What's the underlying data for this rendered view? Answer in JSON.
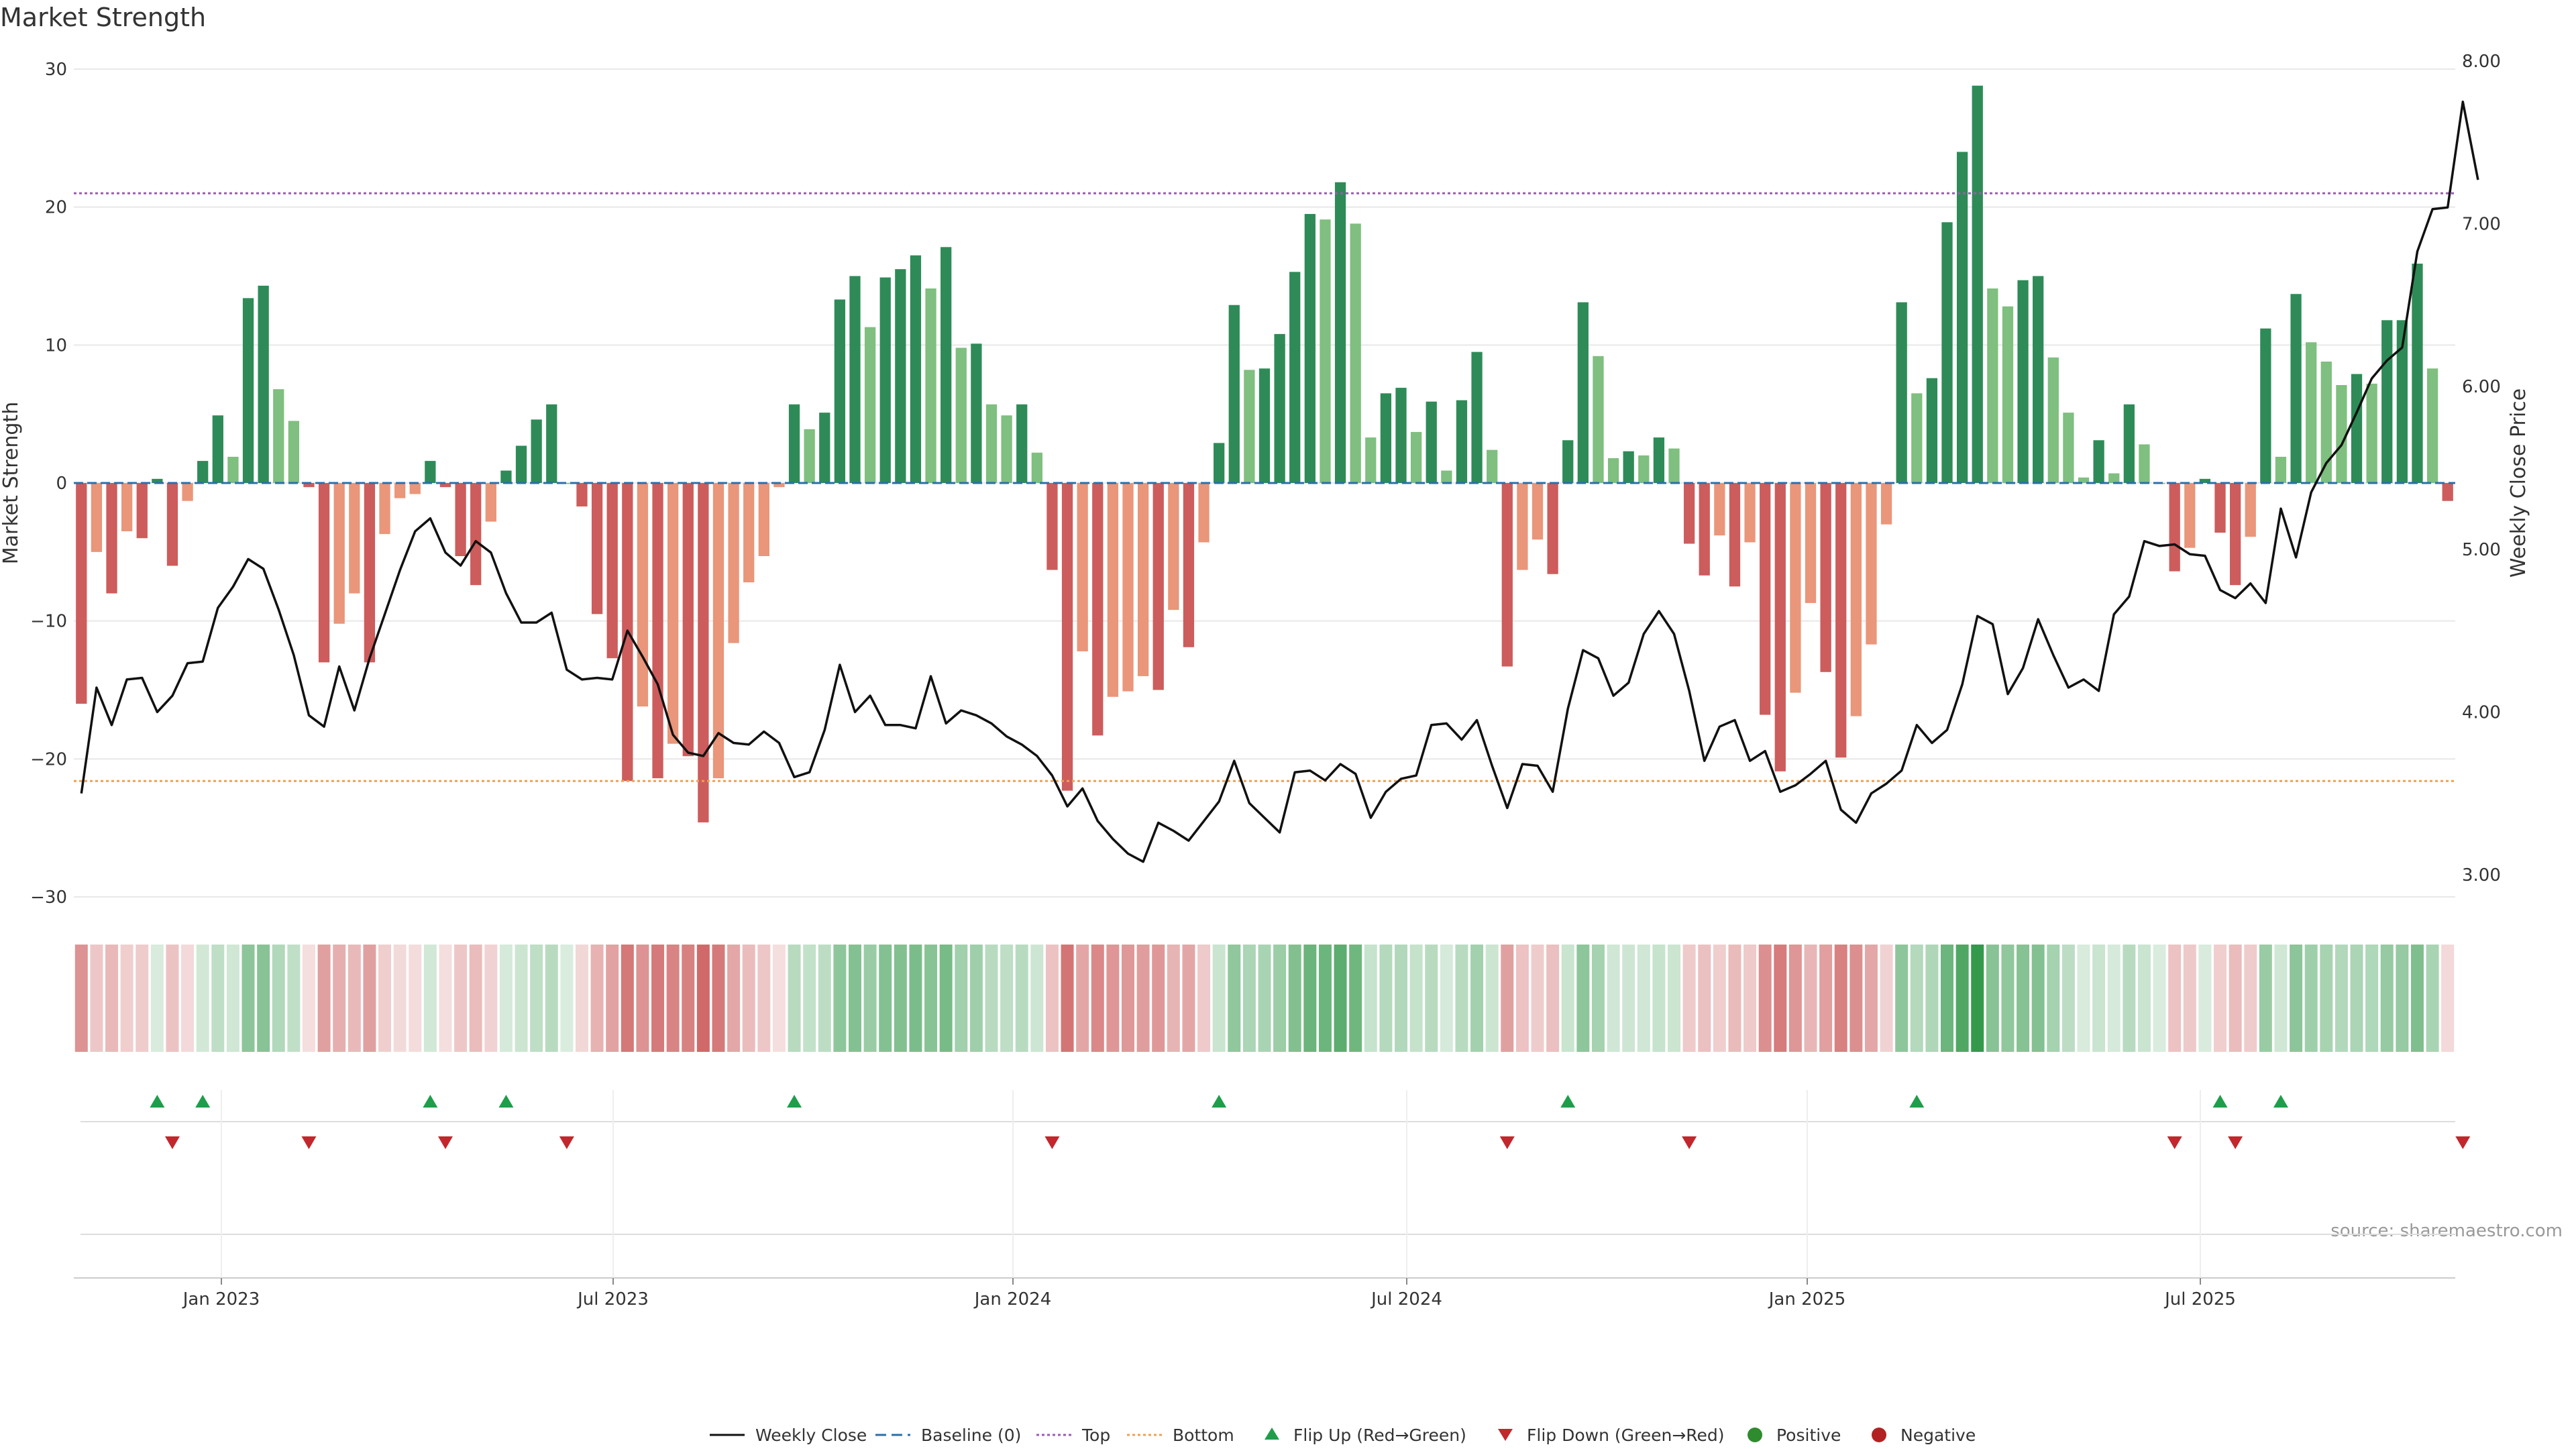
{
  "chart_data": {
    "type": "bar",
    "title": "Market Strength",
    "source": "source: sharemaestro.com",
    "left_axis": {
      "label": "Market Strength",
      "ticks": [
        "30",
        "20",
        "10",
        "0",
        "−10",
        "−20",
        "−30"
      ],
      "range": [
        -30,
        30
      ]
    },
    "right_axis": {
      "label": "Weekly Close Price",
      "ticks": [
        "8.00",
        "7.00",
        "6.00",
        "5.00",
        "4.00",
        "3.00"
      ],
      "range": [
        2.85,
        8.05
      ]
    },
    "x_axis": {
      "ticks": [
        "Jan 2023",
        "Jul 2023",
        "Jan 2024",
        "Jul 2024",
        "Jan 2025",
        "Jul 2025"
      ]
    },
    "top_line": 21,
    "bottom_line": -21.6,
    "strength": [
      -16,
      -5,
      -8,
      -3.5,
      -4,
      0.3,
      -6,
      -1.3,
      1.6,
      4.9,
      1.9,
      13.4,
      14.3,
      6.8,
      4.5,
      -0.3,
      -13,
      -10.2,
      -8,
      -13,
      -3.7,
      -1.1,
      -0.8,
      1.6,
      -0.3,
      -5.3,
      -7.4,
      -2.8,
      0.9,
      2.7,
      4.6,
      5.7,
      0,
      -1.7,
      -9.5,
      -12.7,
      -21.6,
      -16.2,
      -21.4,
      -18.9,
      -19.8,
      -24.6,
      -21.4,
      -11.6,
      -7.2,
      -5.3,
      -0.3,
      5.7,
      3.9,
      5.1,
      13.3,
      15,
      11.3,
      14.9,
      15.5,
      16.5,
      14.1,
      17.1,
      9.8,
      10.1,
      5.7,
      4.9,
      5.7,
      2.2,
      -6.3,
      -22.3,
      -12.2,
      -18.3,
      -15.5,
      -15.1,
      -14,
      -15,
      -9.2,
      -11.9,
      -4.3,
      2.9,
      12.9,
      8.2,
      8.3,
      10.8,
      15.3,
      19.5,
      19.1,
      21.8,
      18.8,
      3.3,
      6.5,
      6.9,
      3.7,
      5.9,
      0.9,
      6,
      9.5,
      2.4,
      -13.3,
      -6.3,
      -4.1,
      -6.6,
      3.1,
      13.1,
      9.2,
      1.8,
      2.3,
      2,
      3.3,
      2.5,
      -4.4,
      -6.7,
      -3.8,
      -7.5,
      -4.3,
      -16.8,
      -20.9,
      -15.2,
      -8.7,
      -13.7,
      -19.9,
      -16.9,
      -11.7,
      -3,
      13.1,
      6.5,
      7.6,
      18.9,
      24,
      28.8,
      14.1,
      12.8,
      14.7,
      15,
      9.1,
      5.1,
      0.4,
      3.1,
      0.7,
      5.7,
      2.8,
      0,
      -6.4,
      -4.7,
      0.3,
      -3.6,
      -7.4,
      -3.9,
      11.2,
      1.9,
      13.7,
      10.2,
      8.8,
      7.1,
      7.9,
      7.2,
      11.8,
      11.8,
      15.9,
      8.3,
      -1.3
    ],
    "weekly_close": [
      3.5,
      4.15,
      3.92,
      4.2,
      4.21,
      4,
      4.1,
      4.3,
      4.31,
      4.64,
      4.77,
      4.94,
      4.88,
      4.63,
      4.35,
      3.98,
      3.91,
      4.28,
      4.01,
      4.33,
      4.6,
      4.87,
      5.11,
      5.19,
      4.98,
      4.9,
      5.05,
      4.98,
      4.73,
      4.55,
      4.55,
      4.61,
      4.26,
      4.2,
      4.21,
      4.2,
      4.5,
      4.34,
      4.17,
      3.86,
      3.75,
      3.73,
      3.87,
      3.81,
      3.8,
      3.88,
      3.81,
      3.6,
      3.63,
      3.89,
      4.29,
      4.0,
      4.1,
      3.92,
      3.92,
      3.9,
      4.22,
      3.93,
      4.01,
      3.98,
      3.93,
      3.85,
      3.8,
      3.73,
      3.61,
      3.42,
      3.53,
      3.33,
      3.22,
      3.13,
      3.08,
      3.32,
      3.27,
      3.21,
      3.33,
      3.45,
      3.7,
      3.44,
      3.35,
      3.26,
      3.63,
      3.64,
      3.58,
      3.68,
      3.62,
      3.35,
      3.51,
      3.59,
      3.61,
      3.92,
      3.93,
      3.83,
      3.95,
      3.67,
      3.41,
      3.68,
      3.67,
      3.51,
      4.02,
      4.38,
      4.33,
      4.1,
      4.18,
      4.48,
      4.62,
      4.48,
      4.13,
      3.7,
      3.91,
      3.95,
      3.7,
      3.76,
      3.51,
      3.55,
      3.62,
      3.7,
      3.4,
      3.32,
      3.5,
      3.56,
      3.64,
      3.92,
      3.81,
      3.89,
      4.17,
      4.59,
      4.54,
      4.11,
      4.27,
      4.57,
      4.35,
      4.15,
      4.2,
      4.13,
      4.6,
      4.71,
      5.05,
      5.02,
      5.03,
      4.97,
      4.96,
      4.75,
      4.7,
      4.79,
      4.67,
      5.25,
      4.95,
      5.35,
      5.53,
      5.64,
      5.84,
      6.05,
      6.16,
      6.24,
      6.83,
      7.09,
      7.1,
      7.75,
      7.27
    ],
    "heat_strip": [
      -16,
      -5,
      -8,
      -3.5,
      -4,
      0.3,
      -6,
      -1.3,
      1.6,
      4.9,
      1.9,
      13.4,
      14.3,
      6.8,
      4.5,
      -0.3,
      -13,
      -10.2,
      -8,
      -13,
      -3.7,
      -1.1,
      -0.8,
      1.6,
      -0.3,
      -5.3,
      -7.4,
      -2.8,
      0.9,
      2.7,
      4.6,
      5.7,
      0,
      -1.7,
      -9.5,
      -12.7,
      -21.6,
      -16.2,
      -21.4,
      -18.9,
      -19.8,
      -24.6,
      -21.4,
      -11.6,
      -7.2,
      -5.3,
      -0.3,
      5.7,
      3.9,
      5.1,
      13.3,
      15,
      11.3,
      14.9,
      15.5,
      16.5,
      14.1,
      17.1,
      9.8,
      10.1,
      5.7,
      4.9,
      5.7,
      2.2,
      -6.3,
      -22.3,
      -12.2,
      -18.3,
      -15.5,
      -15.1,
      -14,
      -15,
      -9.2,
      -11.9,
      -4.3,
      2.9,
      12.9,
      8.2,
      8.3,
      10.8,
      15.3,
      19.5,
      19.1,
      21.8,
      18.8,
      3.3,
      6.5,
      6.9,
      3.7,
      5.9,
      0.9,
      6,
      9.5,
      2.4,
      -13.3,
      -6.3,
      -4.1,
      -6.6,
      3.1,
      13.1,
      9.2,
      1.8,
      2.3,
      2,
      3.3,
      2.5,
      -4.4,
      -6.7,
      -3.8,
      -7.5,
      -4.3,
      -16.8,
      -20.9,
      -15.2,
      -8.7,
      -13.7,
      -19.9,
      -16.9,
      -11.7,
      -3,
      13.1,
      6.5,
      7.6,
      18.9,
      24,
      28.8,
      14.1,
      12.8,
      14.7,
      15,
      9.1,
      5.1,
      0.4,
      3.1,
      0.7,
      5.7,
      2.8,
      0,
      -6.4,
      -4.7,
      0.3,
      -3.6,
      -7.4,
      -3.9,
      11.2,
      1.9,
      13.7,
      10.2,
      8.8,
      7.1,
      7.9,
      7.2,
      11.8,
      11.8,
      15.9,
      8.3,
      -1.3
    ],
    "flip_up_indices": [
      5,
      8,
      23,
      28,
      47,
      75,
      98,
      121,
      141,
      145
    ],
    "flip_down_indices": [
      6,
      15,
      24,
      32,
      64,
      94,
      106,
      138,
      142,
      157
    ]
  },
  "legend": [
    {
      "label": "Weekly Close",
      "kind": "line",
      "color": "#111111"
    },
    {
      "label": "Baseline (0)",
      "kind": "dash",
      "color": "#2b6fa8"
    },
    {
      "label": "Top",
      "kind": "dot",
      "color": "#9b59b6"
    },
    {
      "label": "Bottom",
      "kind": "dot",
      "color": "#f0a050"
    },
    {
      "label": "Flip Up (Red→Green)",
      "kind": "tri-up",
      "color": "#1e9e4a"
    },
    {
      "label": "Flip Down (Green→Red)",
      "kind": "tri-down",
      "color": "#c0282d"
    },
    {
      "label": "Positive",
      "kind": "circle",
      "color": "#2e8b2e"
    },
    {
      "label": "Negative",
      "kind": "circle",
      "color": "#b22222"
    }
  ],
  "colors": {
    "pos_strong": "#2e8b57",
    "pos_weak": "#7fbf7f",
    "neg_strong": "#cd5c5c",
    "neg_weak": "#e9967a",
    "price_line": "#111111",
    "grid": "#e8e8e8"
  }
}
